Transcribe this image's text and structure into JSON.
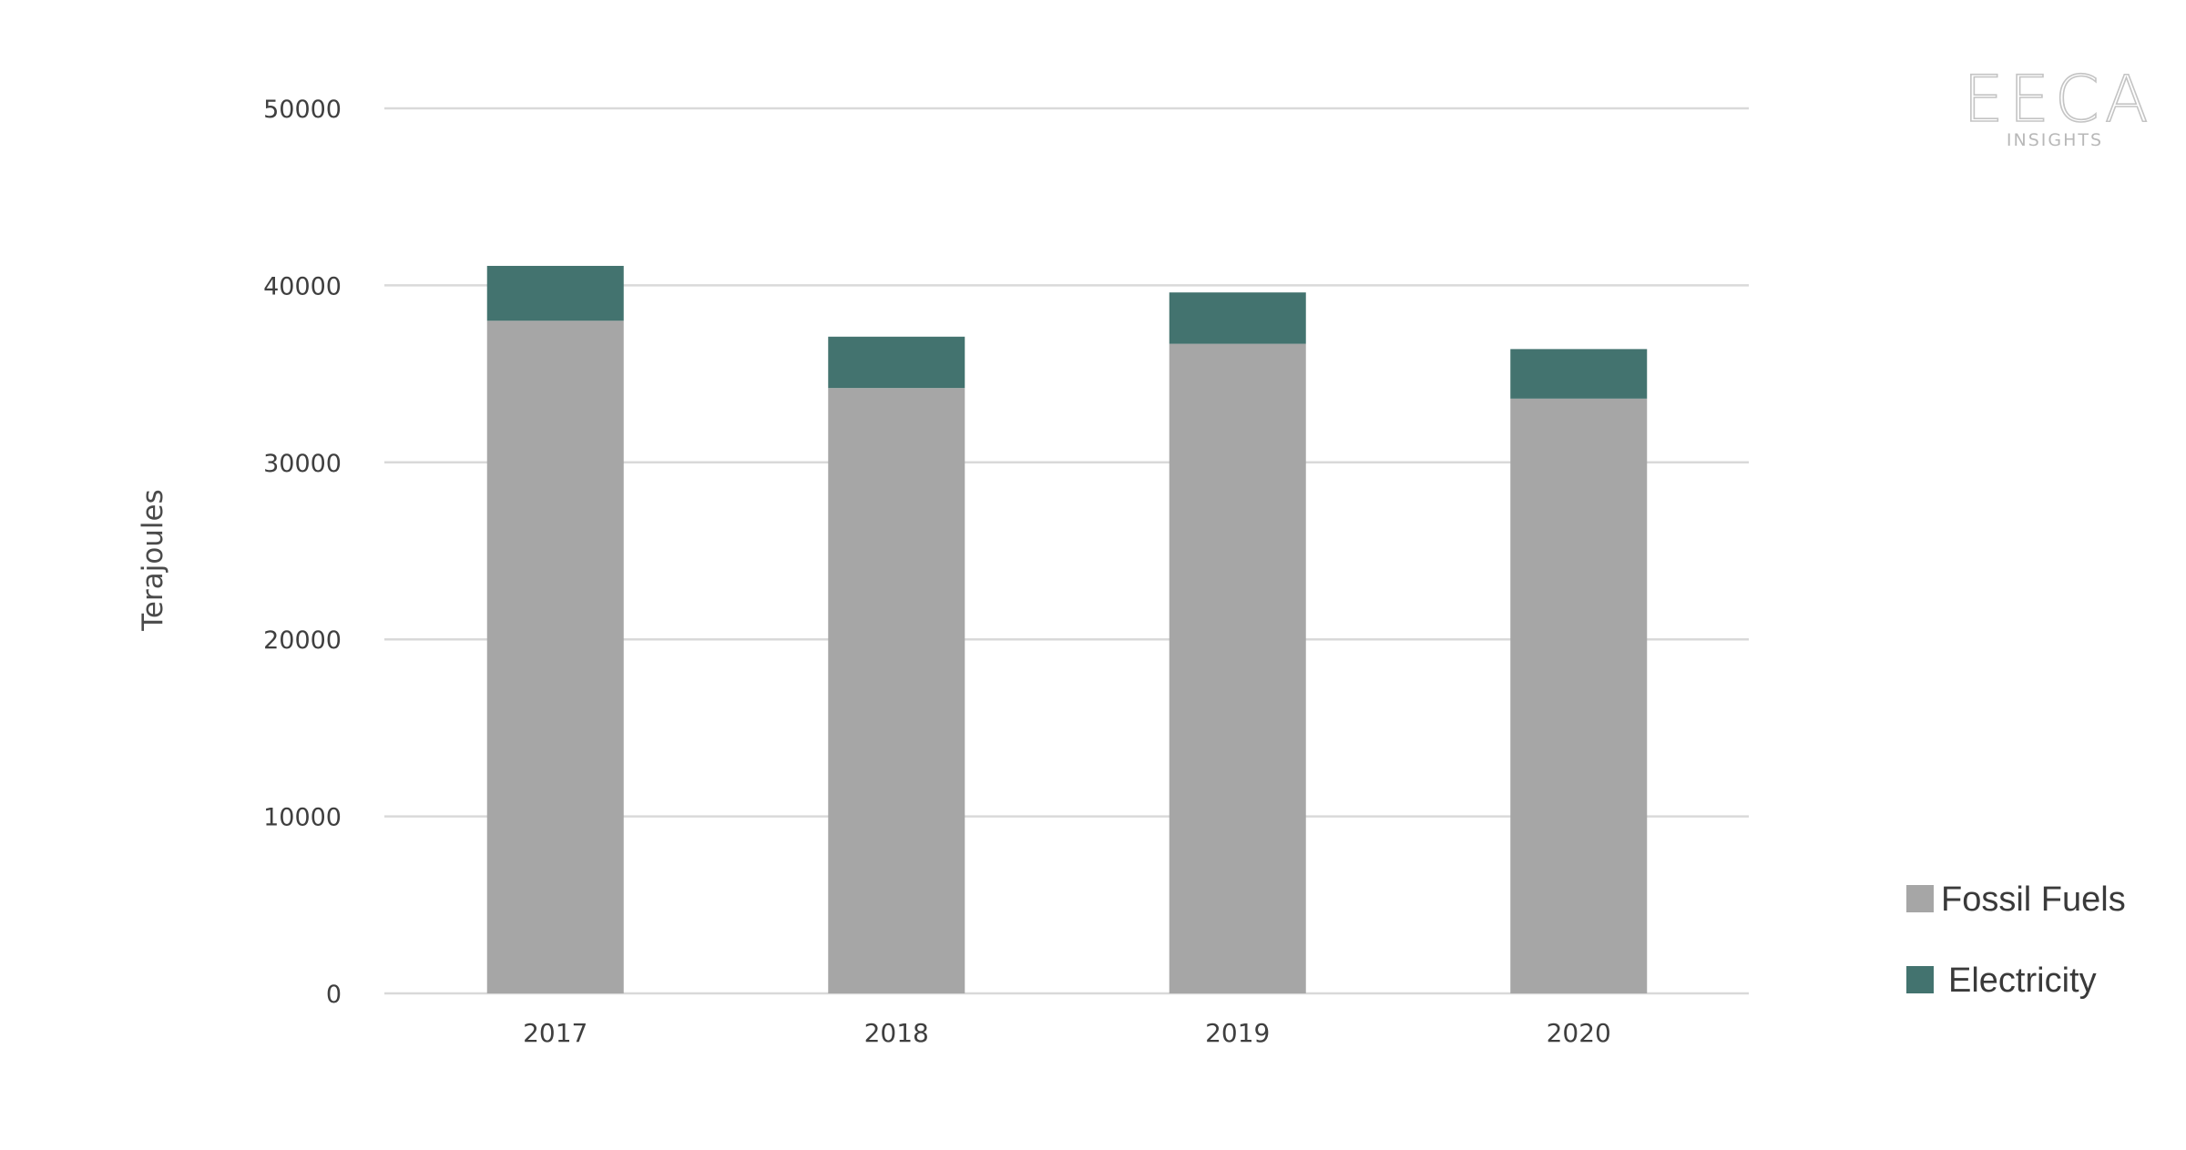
{
  "logo": {
    "main": "EECA",
    "sub": "INSIGHTS"
  },
  "colors": {
    "fossil": "#a6a6a6",
    "electricity": "#43736f",
    "grid": "#d9d9d9",
    "text": "#3f3f3f"
  },
  "chart_data": {
    "type": "bar",
    "stacked": true,
    "categories": [
      "2017",
      "2018",
      "2019",
      "2020"
    ],
    "series": [
      {
        "name": "Fossil Fuels",
        "values": [
          38000,
          34200,
          36700,
          33600
        ]
      },
      {
        "name": "Electricity",
        "values": [
          3100,
          2900,
          2900,
          2800
        ]
      }
    ],
    "ylabel": "Terajoules",
    "ylim": [
      0,
      50000
    ],
    "yticks": [
      "0",
      "10000",
      "20000",
      "30000",
      "40000",
      "50000"
    ],
    "grid": true,
    "legend_position": "bottom-right"
  }
}
